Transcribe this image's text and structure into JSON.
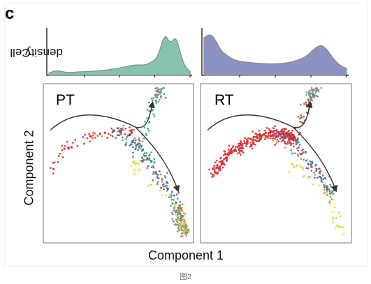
{
  "figure": {
    "panel_letter": "c",
    "density_ylabel_line1": "Cell",
    "density_ylabel_line2": "density",
    "scatter_ylabel": "Component 2",
    "scatter_xlabel": "Component 1",
    "caption": "图2",
    "colors": {
      "pt_density_fill": "#84c4ad",
      "rt_density_fill": "#8b93c0",
      "density_stroke": "#8a8a8a",
      "panel_border": "#8c8c8c",
      "arrow": "#333333"
    }
  },
  "chart_data": [
    {
      "type": "area",
      "panel": "PT",
      "ylabel": "Cell density",
      "xlim": [
        0,
        1
      ],
      "ylim": [
        0,
        1
      ],
      "x": [
        0,
        0.04,
        0.08,
        0.13,
        0.2,
        0.3,
        0.4,
        0.5,
        0.56,
        0.62,
        0.68,
        0.72,
        0.77,
        0.82,
        0.86,
        0.9,
        0.93,
        0.96,
        1.0
      ],
      "y": [
        0.02,
        0.08,
        0.07,
        0.03,
        0.05,
        0.06,
        0.09,
        0.14,
        0.19,
        0.22,
        0.21,
        0.27,
        0.38,
        0.98,
        0.72,
        0.9,
        0.52,
        0.2,
        0.06
      ]
    },
    {
      "type": "area",
      "panel": "RT",
      "xlim": [
        0,
        1
      ],
      "ylim": [
        0,
        1
      ],
      "x": [
        0,
        0.04,
        0.08,
        0.12,
        0.17,
        0.22,
        0.3,
        0.4,
        0.5,
        0.58,
        0.65,
        0.72,
        0.77,
        0.82,
        0.86,
        0.9,
        0.94,
        0.97,
        1.0
      ],
      "y": [
        0.86,
        0.98,
        0.82,
        0.55,
        0.42,
        0.32,
        0.28,
        0.25,
        0.24,
        0.26,
        0.32,
        0.42,
        0.6,
        0.7,
        0.6,
        0.4,
        0.25,
        0.17,
        0.14
      ]
    },
    {
      "type": "scatter",
      "panel": "PT",
      "title": "PT",
      "xlabel": "Component 1",
      "ylabel": "Component 2",
      "xlim": [
        0,
        1
      ],
      "ylim": [
        0,
        1
      ],
      "groups": [
        {
          "color": "#d42a2a",
          "n": 70,
          "points": [
            [
              0.0,
              0.44
            ],
            [
              0.12,
              0.6
            ],
            [
              0.3,
              0.68
            ],
            [
              0.5,
              0.72
            ],
            [
              0.6,
              0.7
            ]
          ]
        },
        {
          "color": "#2f9f7c",
          "n": 110,
          "points": [
            [
              0.5,
              0.72
            ],
            [
              0.63,
              0.62
            ],
            [
              0.7,
              0.55
            ],
            [
              0.8,
              0.4
            ],
            [
              0.92,
              0.2
            ],
            [
              0.95,
              0.1
            ]
          ]
        },
        {
          "color": "#2f9f7c",
          "n": 40,
          "points": [
            [
              0.68,
              0.66
            ],
            [
              0.72,
              0.8
            ],
            [
              0.78,
              0.92
            ],
            [
              0.8,
              0.98
            ]
          ]
        },
        {
          "color": "#8a8a8a",
          "n": 80,
          "points": [
            [
              0.9,
              0.2
            ],
            [
              0.93,
              0.12
            ],
            [
              0.96,
              0.06
            ],
            [
              0.98,
              0.05
            ]
          ]
        },
        {
          "color": "#8a8a8a",
          "n": 25,
          "points": [
            [
              0.77,
              0.95
            ],
            [
              0.8,
              0.99
            ]
          ]
        },
        {
          "color": "#9a3f86",
          "n": 45,
          "points": [
            [
              0.5,
              0.7
            ],
            [
              0.62,
              0.64
            ],
            [
              0.68,
              0.52
            ],
            [
              0.84,
              0.36
            ],
            [
              0.93,
              0.2
            ]
          ]
        },
        {
          "color": "#e6d51f",
          "n": 50,
          "points": [
            [
              0.62,
              0.5
            ],
            [
              0.62,
              0.46
            ],
            [
              0.92,
              0.2
            ],
            [
              0.96,
              0.08
            ],
            [
              0.97,
              0.04
            ]
          ]
        },
        {
          "color": "#e07a3a",
          "n": 25,
          "points": [
            [
              0.35,
              0.68
            ],
            [
              0.6,
              0.7
            ],
            [
              0.85,
              0.3
            ],
            [
              0.95,
              0.12
            ]
          ]
        },
        {
          "color": "#3a6fb5",
          "n": 20,
          "points": [
            [
              0.45,
              0.72
            ],
            [
              0.65,
              0.6
            ],
            [
              0.85,
              0.3
            ]
          ]
        }
      ]
    },
    {
      "type": "scatter",
      "panel": "RT",
      "title": "RT",
      "xlabel": "Component 1",
      "ylabel": "Component 2",
      "xlim": [
        0,
        1
      ],
      "ylim": [
        0,
        1
      ],
      "groups": [
        {
          "color": "#d42a2a",
          "n": 330,
          "points": [
            [
              0.05,
              0.42
            ],
            [
              0.15,
              0.55
            ],
            [
              0.3,
              0.64
            ],
            [
              0.45,
              0.7
            ],
            [
              0.55,
              0.7
            ],
            [
              0.62,
              0.66
            ]
          ]
        },
        {
          "color": "#d42a2a",
          "n": 20,
          "points": [
            [
              0.66,
              0.7
            ],
            [
              0.7,
              0.85
            ],
            [
              0.74,
              0.95
            ]
          ]
        },
        {
          "color": "#8a8a8a",
          "n": 45,
          "points": [
            [
              0.72,
              0.92
            ],
            [
              0.76,
              0.97
            ],
            [
              0.79,
              0.99
            ]
          ]
        },
        {
          "color": "#9a3f86",
          "n": 70,
          "points": [
            [
              0.5,
              0.7
            ],
            [
              0.62,
              0.64
            ],
            [
              0.7,
              0.55
            ],
            [
              0.82,
              0.4
            ],
            [
              0.9,
              0.28
            ]
          ]
        },
        {
          "color": "#2f9f7c",
          "n": 40,
          "points": [
            [
              0.55,
              0.7
            ],
            [
              0.66,
              0.6
            ],
            [
              0.8,
              0.42
            ],
            [
              0.9,
              0.28
            ]
          ]
        },
        {
          "color": "#2f9f7c",
          "n": 15,
          "points": [
            [
              0.7,
              0.8
            ],
            [
              0.75,
              0.95
            ]
          ]
        },
        {
          "color": "#e6d51f",
          "n": 40,
          "points": [
            [
              0.62,
              0.5
            ],
            [
              0.64,
              0.45
            ],
            [
              0.88,
              0.3
            ],
            [
              0.93,
              0.12
            ],
            [
              0.95,
              0.06
            ]
          ]
        },
        {
          "color": "#e07a3a",
          "n": 20,
          "points": [
            [
              0.4,
              0.7
            ],
            [
              0.65,
              0.58
            ],
            [
              0.9,
              0.25
            ]
          ]
        },
        {
          "color": "#3a6fb5",
          "n": 15,
          "points": [
            [
              0.5,
              0.7
            ],
            [
              0.7,
              0.55
            ],
            [
              0.88,
              0.3
            ]
          ]
        }
      ]
    }
  ]
}
